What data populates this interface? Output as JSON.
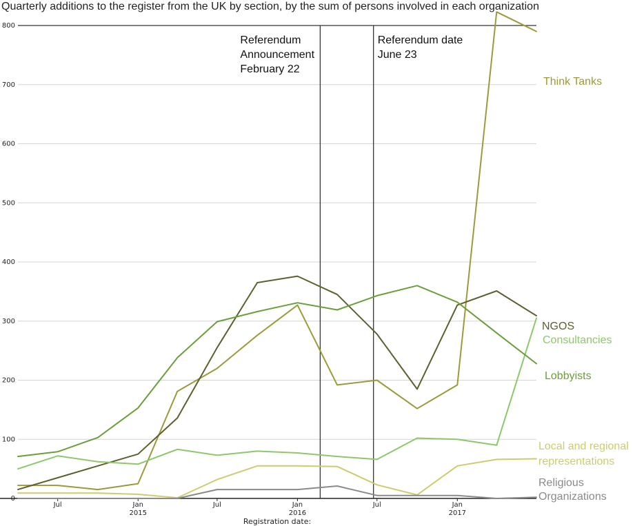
{
  "chart_data": {
    "type": "line",
    "title": "Quarterly additions to the register from the UK by section, by the sum of persons involved in each organization",
    "xlabel": "Registration date:",
    "ylabel": "",
    "ylim": [
      0,
      800
    ],
    "yticks": [
      0,
      100,
      200,
      300,
      400,
      500,
      600,
      700,
      800
    ],
    "grid": "horizontal",
    "x": [
      "2014-04",
      "2014-07",
      "2014-10",
      "2015-01",
      "2015-04",
      "2015-07",
      "2015-10",
      "2016-01",
      "2016-04",
      "2016-07",
      "2016-10",
      "2017-01",
      "2017-04",
      "2017-07"
    ],
    "xticks": [
      {
        "month": "Jul",
        "year": "",
        "date": "2014-07"
      },
      {
        "month": "Jan",
        "year": "2015",
        "date": "2015-01"
      },
      {
        "month": "Jul",
        "year": "",
        "date": "2015-07"
      },
      {
        "month": "Jan",
        "year": "2016",
        "date": "2016-01"
      },
      {
        "month": "Jul",
        "year": "",
        "date": "2016-07"
      },
      {
        "month": "Jan",
        "year": "2017",
        "date": "2017-01"
      }
    ],
    "series": [
      {
        "name": "Think Tanks",
        "color": "#9a9a3a",
        "values": [
          22,
          22,
          15,
          25,
          181,
          220,
          276,
          327,
          192,
          200,
          152,
          192,
          823,
          790
        ]
      },
      {
        "name": "NGOS",
        "color": "#5e5e2e",
        "values": [
          15,
          35,
          55,
          75,
          136,
          255,
          365,
          376,
          345,
          278,
          185,
          327,
          351,
          309
        ]
      },
      {
        "name": "Consultancies",
        "color": "#8cc86a",
        "values": [
          50,
          72,
          62,
          58,
          83,
          73,
          80,
          77,
          71,
          66,
          102,
          100,
          90,
          305
        ]
      },
      {
        "name": "Lobbyists",
        "color": "#6a9e3a",
        "values": [
          71,
          79,
          103,
          153,
          238,
          299,
          316,
          331,
          319,
          343,
          360,
          332,
          280,
          228
        ]
      },
      {
        "name": "Local and regional representations",
        "color": "#cccc6e",
        "values": [
          9,
          9,
          9,
          7,
          1,
          32,
          55,
          55,
          54,
          23,
          6,
          55,
          66,
          67
        ]
      },
      {
        "name": "Religious Organizations",
        "color": "#8a8a8a",
        "values": [
          0,
          0,
          0,
          0,
          0,
          15,
          15,
          15,
          21,
          5,
          5,
          5,
          0,
          2
        ]
      }
    ],
    "annotations": [
      {
        "date": "2016-02-22",
        "lines": [
          "Referendum",
          "Announcement",
          "February 22"
        ]
      },
      {
        "date": "2016-06-23",
        "lines": [
          "Referendum date",
          "June 23"
        ]
      }
    ]
  }
}
